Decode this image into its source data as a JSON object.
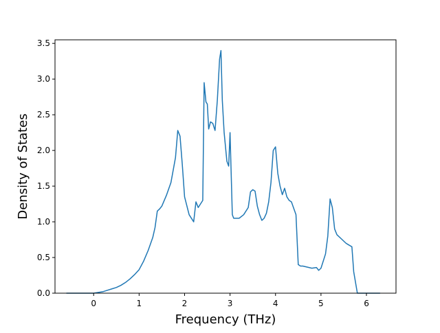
{
  "chart_data": {
    "type": "line",
    "title": "",
    "xlabel": "Frequency (THz)",
    "ylabel": "Density of States",
    "xlim": [
      -0.85,
      6.65
    ],
    "ylim": [
      0.0,
      3.55
    ],
    "xticks": [
      0,
      1,
      2,
      3,
      4,
      5,
      6
    ],
    "yticks": [
      0.0,
      0.5,
      1.0,
      1.5,
      2.0,
      2.5,
      3.0,
      3.5
    ],
    "xtick_labels": [
      "0",
      "1",
      "2",
      "3",
      "4",
      "5",
      "6"
    ],
    "ytick_labels": [
      "0.0",
      "0.5",
      "1.0",
      "1.5",
      "2.0",
      "2.5",
      "3.0",
      "3.5"
    ],
    "grid": false,
    "legend": "none",
    "series": [
      {
        "color": "#1f77b4",
        "x": [
          -0.6,
          0.0,
          0.2,
          0.3,
          0.4,
          0.5,
          0.6,
          0.7,
          0.8,
          0.9,
          1.0,
          1.1,
          1.2,
          1.3,
          1.35,
          1.4,
          1.45,
          1.5,
          1.6,
          1.7,
          1.8,
          1.85,
          1.9,
          1.95,
          2.0,
          2.1,
          2.2,
          2.25,
          2.3,
          2.4,
          2.43,
          2.47,
          2.5,
          2.53,
          2.57,
          2.62,
          2.67,
          2.72,
          2.77,
          2.8,
          2.83,
          2.87,
          2.93,
          2.97,
          3.0,
          3.05,
          3.08,
          3.12,
          3.2,
          3.3,
          3.4,
          3.45,
          3.5,
          3.55,
          3.6,
          3.65,
          3.7,
          3.75,
          3.8,
          3.85,
          3.9,
          3.95,
          4.0,
          4.05,
          4.1,
          4.15,
          4.2,
          4.25,
          4.3,
          4.35,
          4.45,
          4.5,
          4.55,
          4.6,
          4.8,
          4.9,
          4.95,
          5.0,
          5.05,
          5.1,
          5.15,
          5.2,
          5.25,
          5.3,
          5.35,
          5.45,
          5.55,
          5.6,
          5.68,
          5.72,
          5.8,
          6.3
        ],
        "y": [
          0.0,
          0.0,
          0.02,
          0.04,
          0.06,
          0.08,
          0.11,
          0.15,
          0.2,
          0.26,
          0.33,
          0.45,
          0.6,
          0.78,
          0.92,
          1.15,
          1.18,
          1.22,
          1.37,
          1.55,
          1.9,
          2.28,
          2.2,
          1.8,
          1.35,
          1.1,
          1.0,
          1.28,
          1.2,
          1.3,
          2.95,
          2.68,
          2.65,
          2.3,
          2.4,
          2.38,
          2.28,
          2.7,
          3.28,
          3.4,
          2.7,
          2.25,
          1.85,
          1.78,
          2.25,
          1.1,
          1.05,
          1.05,
          1.05,
          1.1,
          1.2,
          1.42,
          1.45,
          1.43,
          1.22,
          1.1,
          1.02,
          1.05,
          1.12,
          1.28,
          1.55,
          2.0,
          2.05,
          1.68,
          1.5,
          1.38,
          1.47,
          1.35,
          1.3,
          1.28,
          1.1,
          0.4,
          0.38,
          0.38,
          0.35,
          0.36,
          0.32,
          0.35,
          0.45,
          0.55,
          0.8,
          1.32,
          1.2,
          0.9,
          0.82,
          0.76,
          0.7,
          0.68,
          0.65,
          0.3,
          0.0,
          0.0
        ]
      }
    ]
  }
}
